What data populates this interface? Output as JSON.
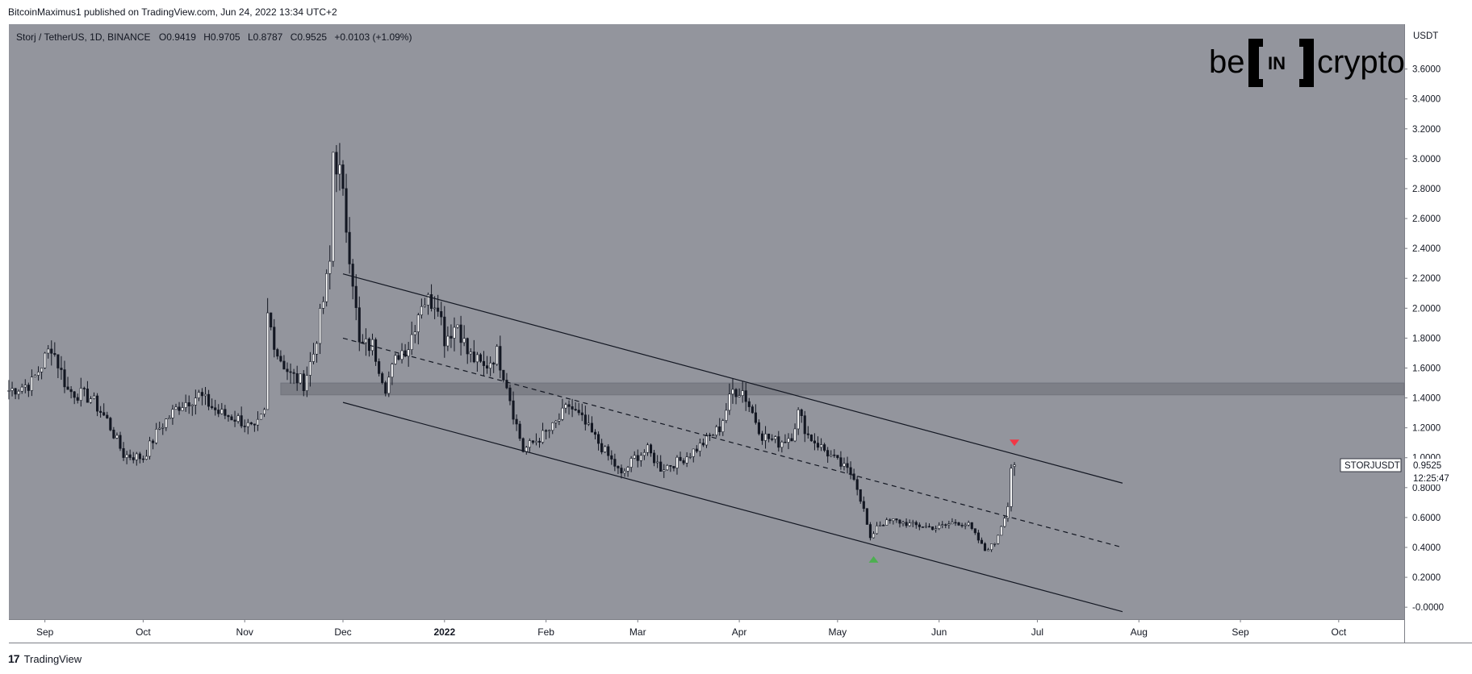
{
  "header": {
    "published": "BitcoinMaximus1 published on TradingView.com, Jun 24, 2022 13:34 UTC+2"
  },
  "footer": {
    "brand": "TradingView",
    "brand_mark": "17"
  },
  "logo": {
    "left": "be",
    "middle": "IN",
    "right": "crypto"
  },
  "legend": {
    "symbol": "Storj / TetherUS, 1D, BINANCE",
    "o_label": "O",
    "o_value": "0.9419",
    "h_label": "H",
    "h_value": "0.9705",
    "l_label": "L",
    "l_value": "0.8787",
    "c_label": "C",
    "c_value": "0.9525",
    "change": "+0.0103 (+1.09%)"
  },
  "price_tag": {
    "ticker": "STORJUSDT",
    "price": "0.9525",
    "countdown": "12:25:47"
  },
  "colors": {
    "plot_bg": "#93959d",
    "candle_body": "#131722",
    "zone": "#7d7f87",
    "signal_up": "#4caf50",
    "signal_down": "#f23645"
  },
  "chart_data": {
    "type": "candlestick",
    "title": "Storj / TetherUS, 1D, BINANCE",
    "yaxis_unit": "USDT",
    "ylim": [
      -0.08,
      3.9
    ],
    "yticks": [
      "3.6000",
      "3.4000",
      "3.2000",
      "3.0000",
      "2.8000",
      "2.6000",
      "2.4000",
      "2.2000",
      "2.0000",
      "1.8000",
      "1.6000",
      "1.4000",
      "1.2000",
      "1.0000",
      "0.8000",
      "0.6000",
      "0.4000",
      "0.2000",
      "-0.0000"
    ],
    "xticks": [
      {
        "label": "Sep",
        "date": "2021-09-01"
      },
      {
        "label": "Oct",
        "date": "2021-10-01"
      },
      {
        "label": "Nov",
        "date": "2021-11-01"
      },
      {
        "label": "Dec",
        "date": "2021-12-01"
      },
      {
        "label": "2022",
        "date": "2022-01-01"
      },
      {
        "label": "Feb",
        "date": "2022-02-01"
      },
      {
        "label": "Mar",
        "date": "2022-03-01"
      },
      {
        "label": "Apr",
        "date": "2022-04-01"
      },
      {
        "label": "May",
        "date": "2022-05-01"
      },
      {
        "label": "Jun",
        "date": "2022-06-01"
      },
      {
        "label": "Jul",
        "date": "2022-07-01"
      },
      {
        "label": "Aug",
        "date": "2022-08-01"
      },
      {
        "label": "Sep",
        "date": "2022-09-01"
      },
      {
        "label": "Oct",
        "date": "2022-10-01"
      }
    ],
    "xrange": [
      "2021-08-21",
      "2022-10-21"
    ],
    "price_anchors": [
      [
        "2021-08-21",
        1.45
      ],
      [
        "2021-08-28",
        1.5
      ],
      [
        "2021-09-03",
        1.75
      ],
      [
        "2021-09-08",
        1.45
      ],
      [
        "2021-09-15",
        1.4
      ],
      [
        "2021-09-20",
        1.25
      ],
      [
        "2021-09-25",
        1.02
      ],
      [
        "2021-10-01",
        1.0
      ],
      [
        "2021-10-06",
        1.2
      ],
      [
        "2021-10-12",
        1.35
      ],
      [
        "2021-10-18",
        1.42
      ],
      [
        "2021-10-24",
        1.3
      ],
      [
        "2021-10-30",
        1.26
      ],
      [
        "2021-11-04",
        1.18
      ],
      [
        "2021-11-07",
        1.3
      ],
      [
        "2021-11-08",
        1.95
      ],
      [
        "2021-11-11",
        1.7
      ],
      [
        "2021-11-15",
        1.55
      ],
      [
        "2021-11-19",
        1.5
      ],
      [
        "2021-11-22",
        1.7
      ],
      [
        "2021-11-25",
        2.05
      ],
      [
        "2021-11-27",
        2.3
      ],
      [
        "2021-11-28",
        3.05
      ],
      [
        "2021-11-30",
        2.9
      ],
      [
        "2021-12-02",
        2.55
      ],
      [
        "2021-12-04",
        2.2
      ],
      [
        "2021-12-06",
        1.75
      ],
      [
        "2021-12-10",
        1.75
      ],
      [
        "2021-12-14",
        1.48
      ],
      [
        "2021-12-18",
        1.7
      ],
      [
        "2021-12-21",
        1.75
      ],
      [
        "2021-12-25",
        2.05
      ],
      [
        "2021-12-30",
        2.05
      ],
      [
        "2022-01-01",
        1.8
      ],
      [
        "2022-01-05",
        1.9
      ],
      [
        "2022-01-08",
        1.7
      ],
      [
        "2022-01-13",
        1.6
      ],
      [
        "2022-01-17",
        1.7
      ],
      [
        "2022-01-20",
        1.5
      ],
      [
        "2022-01-22",
        1.3
      ],
      [
        "2022-01-25",
        1.05
      ],
      [
        "2022-01-28",
        1.1
      ],
      [
        "2022-02-03",
        1.2
      ],
      [
        "2022-02-08",
        1.35
      ],
      [
        "2022-02-12",
        1.25
      ],
      [
        "2022-02-17",
        1.1
      ],
      [
        "2022-02-22",
        0.95
      ],
      [
        "2022-02-24",
        0.88
      ],
      [
        "2022-02-28",
        1.0
      ],
      [
        "2022-03-04",
        1.05
      ],
      [
        "2022-03-08",
        0.93
      ],
      [
        "2022-03-14",
        0.98
      ],
      [
        "2022-03-20",
        1.08
      ],
      [
        "2022-03-26",
        1.2
      ],
      [
        "2022-03-30",
        1.45
      ],
      [
        "2022-04-02",
        1.45
      ],
      [
        "2022-04-05",
        1.3
      ],
      [
        "2022-04-08",
        1.15
      ],
      [
        "2022-04-13",
        1.1
      ],
      [
        "2022-04-17",
        1.15
      ],
      [
        "2022-04-19",
        1.3
      ],
      [
        "2022-04-22",
        1.15
      ],
      [
        "2022-04-27",
        1.05
      ],
      [
        "2022-05-02",
        0.95
      ],
      [
        "2022-05-06",
        0.88
      ],
      [
        "2022-05-09",
        0.65
      ],
      [
        "2022-05-11",
        0.45
      ],
      [
        "2022-05-13",
        0.55
      ],
      [
        "2022-05-18",
        0.58
      ],
      [
        "2022-05-24",
        0.55
      ],
      [
        "2022-05-31",
        0.53
      ],
      [
        "2022-06-06",
        0.57
      ],
      [
        "2022-06-10",
        0.55
      ],
      [
        "2022-06-13",
        0.45
      ],
      [
        "2022-06-15",
        0.38
      ],
      [
        "2022-06-18",
        0.43
      ],
      [
        "2022-06-20",
        0.55
      ],
      [
        "2022-06-22",
        0.68
      ],
      [
        "2022-06-23",
        0.94
      ],
      [
        "2022-06-24",
        0.9525
      ]
    ],
    "last_candle": {
      "date": "2022-06-24",
      "open": 0.9419,
      "high": 0.9705,
      "low": 0.8787,
      "close": 0.9525
    },
    "channel": {
      "upper": [
        [
          "2021-12-01",
          2.23
        ],
        [
          "2022-07-27",
          0.83
        ]
      ],
      "middle": [
        [
          "2021-12-01",
          1.8
        ],
        [
          "2022-07-27",
          0.4
        ]
      ],
      "lower": [
        [
          "2021-12-01",
          1.37
        ],
        [
          "2022-07-27",
          -0.03
        ]
      ]
    },
    "horizontal_zone": {
      "x_start": "2021-11-12",
      "x_end": "2022-10-21",
      "y_low": 1.42,
      "y_high": 1.5
    },
    "markers": [
      {
        "type": "arrow-up",
        "color": "green",
        "date": "2022-05-12",
        "price": 0.32
      },
      {
        "type": "arrow-down",
        "color": "red",
        "date": "2022-06-24",
        "price": 1.1
      }
    ]
  }
}
